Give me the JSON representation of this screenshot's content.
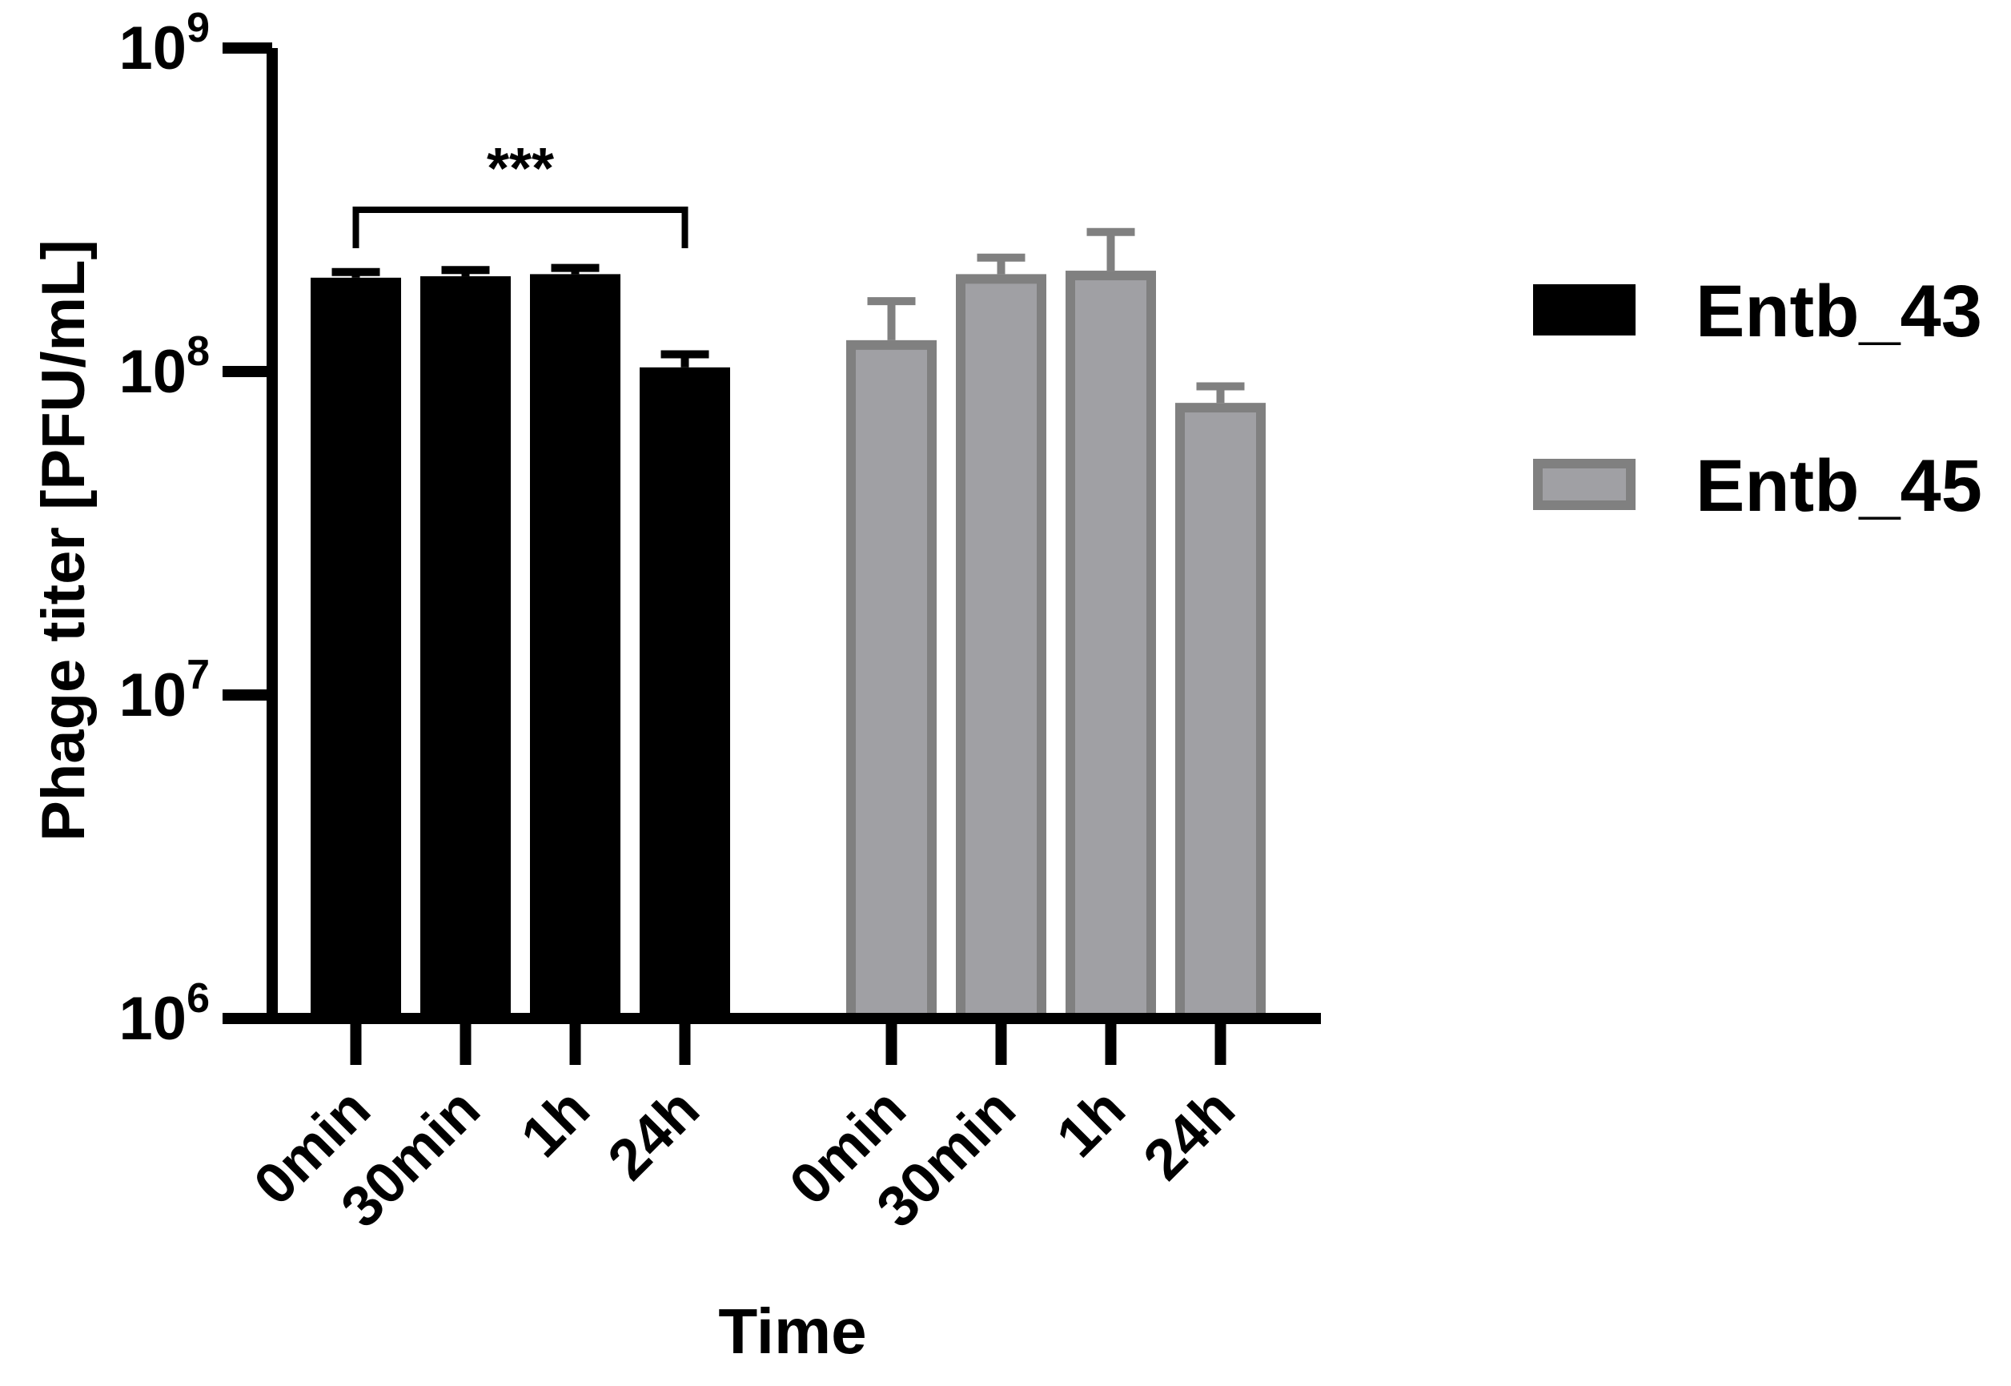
{
  "chart_data": {
    "type": "bar",
    "title": "",
    "xlabel": "Time",
    "ylabel": "Phage titer [PFU/mL]",
    "yscale": "log",
    "ylim": [
      1000000,
      1000000000
    ],
    "yticks": [
      {
        "base": "10",
        "exp": "6"
      },
      {
        "base": "10",
        "exp": "7"
      },
      {
        "base": "10",
        "exp": "8"
      },
      {
        "base": "10",
        "exp": "9"
      }
    ],
    "grid": false,
    "legend_position": "right",
    "series": [
      {
        "name": "Entb_43",
        "color": "#000000",
        "edge_color": "#000000",
        "categories": [
          "0min",
          "30min",
          "1h",
          "24h"
        ],
        "values": [
          195000000,
          197000000,
          200000000,
          103000000
        ],
        "errors": [
          8000000,
          9000000,
          9000000,
          10000000
        ]
      },
      {
        "name": "Entb_45",
        "color": "#a0a0a4",
        "edge_color": "#808080",
        "categories": [
          "0min",
          "30min",
          "1h",
          "24h"
        ],
        "values": [
          125000000,
          200000000,
          205000000,
          80000000
        ],
        "errors": [
          40000000,
          25000000,
          65000000,
          10000000
        ]
      }
    ],
    "annotations": [
      {
        "text": "***",
        "series": "Entb_43",
        "from": "0min",
        "to": "24h"
      }
    ]
  }
}
